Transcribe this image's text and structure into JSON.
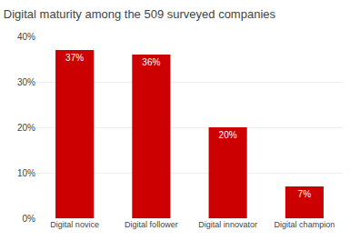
{
  "chart_data": {
    "type": "bar",
    "title": "Digital maturity among the 509 surveyed companies",
    "categories": [
      "Digital novice",
      "Digital follower",
      "Digital innovator",
      "Digital champion"
    ],
    "values": [
      37,
      36,
      20,
      7
    ],
    "value_labels": [
      "37%",
      "36%",
      "20%",
      "7%"
    ],
    "data_labels": true,
    "color": "#cc0000",
    "ylim": [
      0,
      40
    ],
    "yticks": [
      {
        "value": 0,
        "label": "0%"
      },
      {
        "value": 10,
        "label": "10%"
      },
      {
        "value": 20,
        "label": "20%"
      },
      {
        "value": 30,
        "label": "30%"
      },
      {
        "value": 40,
        "label": "40%"
      }
    ],
    "grid": true
  }
}
